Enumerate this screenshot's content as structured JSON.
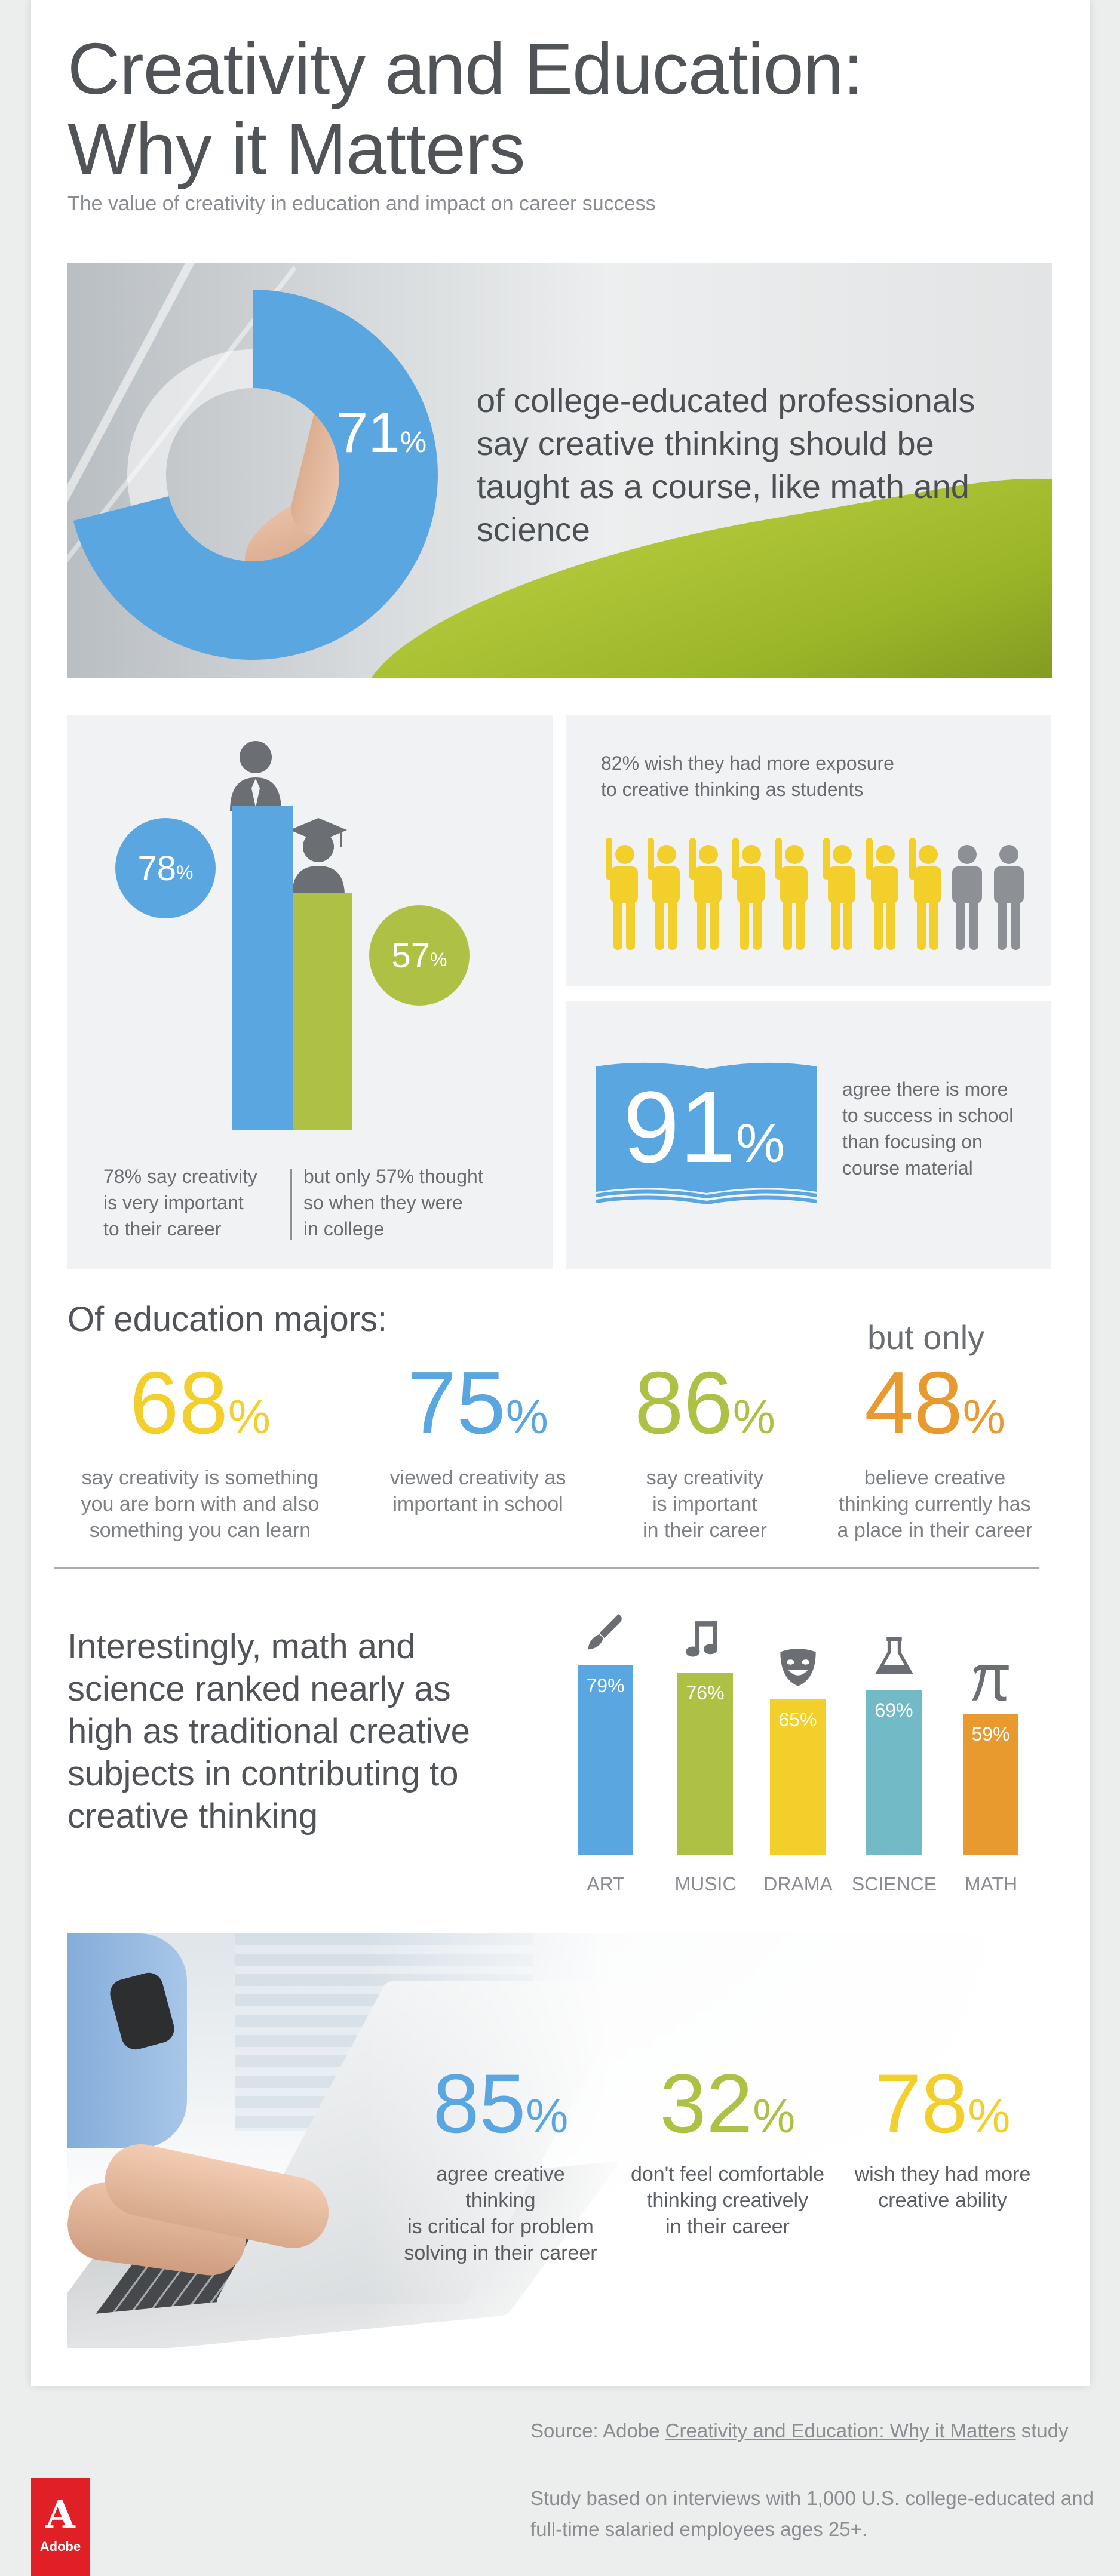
{
  "title": {
    "line1": "Creativity and Education:",
    "line2": "Why it Matters"
  },
  "subtitle": "The value of creativity in education and impact on career success",
  "hero": {
    "value": 71,
    "num": "71",
    "unit": "%",
    "text": "of college-educated professionals say creative thinking should be taught as a course, like math and science"
  },
  "career_vs_college": {
    "career": {
      "value": 78,
      "num": "78",
      "unit": "%",
      "caption_lines": [
        "78% say creativity",
        "is very important",
        "to their career"
      ]
    },
    "college": {
      "value": 57,
      "num": "57",
      "unit": "%",
      "caption_lines": [
        "but only 57% thought",
        "so when they were",
        "in college"
      ]
    }
  },
  "exposure": {
    "text_lines": [
      "82% wish they had more exposure",
      "to creative thinking as students"
    ],
    "highlighted": 8,
    "total": 10
  },
  "success": {
    "num": "91",
    "unit": "%",
    "text_lines": [
      "agree there is more",
      "to success in school",
      "than focusing on",
      "course material"
    ]
  },
  "majors": {
    "title": "Of education majors:",
    "but_only": "but only",
    "stats": [
      {
        "num": "68",
        "unit": "%",
        "caption_lines": [
          "say creativity is something",
          "you are born with and also",
          "something you can learn"
        ]
      },
      {
        "num": "75",
        "unit": "%",
        "caption_lines": [
          "viewed creativity as",
          "important in school"
        ]
      },
      {
        "num": "86",
        "unit": "%",
        "caption_lines": [
          "say creativity",
          "is important",
          "in their career"
        ]
      },
      {
        "num": "48",
        "unit": "%",
        "caption_lines": [
          "believe creative",
          "thinking currently has",
          "a place in their career"
        ]
      }
    ]
  },
  "subjects_text": "Interestingly, math and science ranked nearly as high as traditional creative subjects in contributing to creative thinking",
  "chart_data": {
    "type": "bar",
    "categories": [
      "ART",
      "MUSIC",
      "DRAMA",
      "SCIENCE",
      "MATH"
    ],
    "values": [
      79,
      76,
      65,
      69,
      59
    ],
    "labels": [
      "79%",
      "76%",
      "65%",
      "69%",
      "59%"
    ],
    "icons": [
      "paintbrush-icon",
      "music-note-icon",
      "drama-mask-icon",
      "flask-icon",
      "pi-icon"
    ],
    "colors": [
      "#5aa6e0",
      "#aec145",
      "#f2cf2b",
      "#72bac6",
      "#e89a2f"
    ]
  },
  "bottom_stats": [
    {
      "num": "85",
      "unit": "%",
      "caption_lines": [
        "agree creative thinking",
        "is critical for problem",
        "solving in their career"
      ]
    },
    {
      "num": "32",
      "unit": "%",
      "caption_lines": [
        "don't feel comfortable",
        "thinking creatively",
        "in their career"
      ]
    },
    {
      "num": "78",
      "unit": "%",
      "caption_lines": [
        "wish they had more",
        "creative ability"
      ]
    }
  ],
  "source": {
    "prefix": "Source: Adobe ",
    "link": "Creativity and Education: Why it Matters",
    "suffix": " study"
  },
  "study": "Study based on interviews with 1,000 U.S. college-educated and full-time salaried employees ages 25+.",
  "logo": {
    "mark": "A",
    "text": "Adobe"
  },
  "colors": {
    "blue": "#5aa6e0",
    "green": "#aec145",
    "yellow": "#f2cf2b",
    "orange": "#e89a2f",
    "teal": "#72bac6",
    "gray": "#8d9094",
    "red": "#e01f26"
  }
}
